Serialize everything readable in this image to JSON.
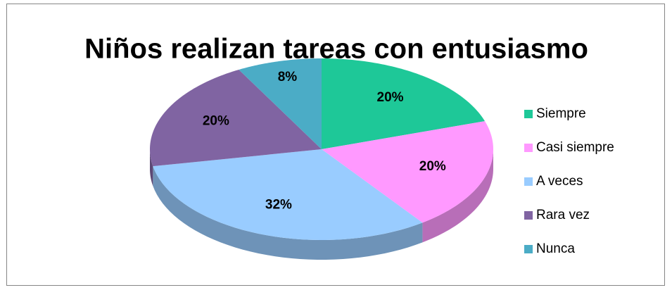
{
  "chart_data": {
    "type": "pie",
    "title": "Niños realizan tareas  con entusiasmo",
    "categories": [
      "Siempre",
      "Casi siempre",
      "A veces",
      "Rara vez",
      "Nunca"
    ],
    "values": [
      20,
      20,
      32,
      20,
      8
    ],
    "value_labels": [
      "20%",
      "20%",
      "32%",
      "20%",
      "8%"
    ],
    "colors": [
      "#1ec898",
      "#ff99ff",
      "#99ccff",
      "#8064a2",
      "#4bacc6"
    ],
    "legend": "right"
  }
}
